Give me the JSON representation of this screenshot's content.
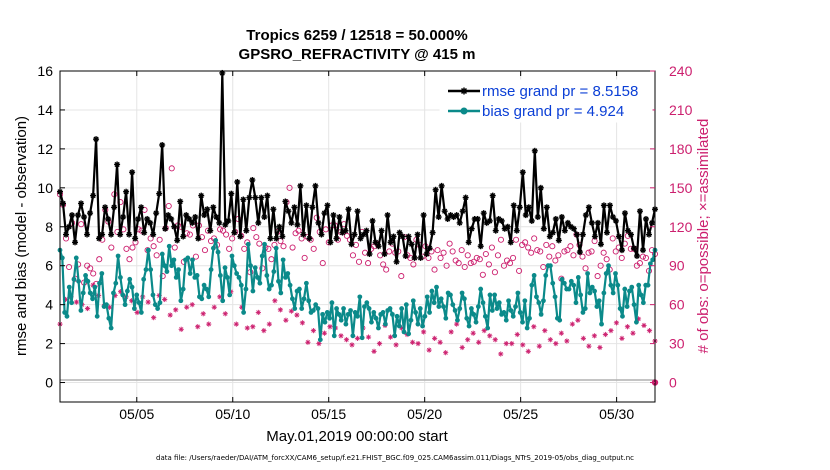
{
  "chart_data": {
    "type": "line",
    "title": "Tropics 6259 / 12518 = 50.000%",
    "subtitle": "GPSRO_REFRACTIVITY @ 415 m",
    "xlabel": "May.01,2019 00:00:00 start",
    "ylabel": "rmse and bias (model - observation)",
    "y2label": "# of obs: o=possible; ×=assimilated",
    "x_ticks": [
      {
        "pos": 5,
        "label": "05/05"
      },
      {
        "pos": 10,
        "label": "05/10"
      },
      {
        "pos": 15,
        "label": "05/15"
      },
      {
        "pos": 20,
        "label": "05/20"
      },
      {
        "pos": 25,
        "label": "05/25"
      },
      {
        "pos": 30,
        "label": "05/30"
      }
    ],
    "xlim": [
      1,
      32
    ],
    "ylim": [
      -1,
      16
    ],
    "y_ticks": [
      0,
      2,
      4,
      6,
      8,
      10,
      12,
      14,
      16
    ],
    "y2lim": [
      -15,
      240
    ],
    "y2_ticks": [
      0,
      30,
      60,
      90,
      120,
      150,
      180,
      210,
      240
    ],
    "grid": true,
    "legend": "top-right",
    "series": [
      {
        "name": "rmse grand pr = 8.5158",
        "color": "#000000",
        "marker": "asterisk",
        "values": [
          9.8,
          9.2,
          7.6,
          8.0,
          8.6,
          7.2,
          8.6,
          9.2,
          8.5,
          7.6,
          8.7,
          9.6,
          12.5,
          7.4,
          7.6,
          9.0,
          8.4,
          7.6,
          9.0,
          11.2,
          7.6,
          8.5,
          9.8,
          7.6,
          10.8,
          7.4,
          8.4,
          9.0,
          7.7,
          8.4,
          8.2,
          7.6,
          8.7,
          9.7,
          12.2,
          7.9,
          8.6,
          8.4,
          8.0,
          7.3,
          9.3,
          7.5,
          8.6,
          8.4,
          8.2,
          8.5,
          7.4,
          9.6,
          8.6,
          8.9,
          7.8,
          9.0,
          8.5,
          8.2,
          15.9,
          8.1,
          8.3,
          9.7,
          7.7,
          10.3,
          7.5,
          9.4,
          7.8,
          9.5,
          10.4,
          9.5,
          8.2,
          9.5,
          8.5,
          9.6,
          7.4,
          8.9,
          7.4,
          8.0,
          7.5,
          9.3,
          8.8,
          8.2,
          9.0,
          8.1,
          10.1,
          7.6,
          9.1,
          7.4,
          9.0,
          10.1,
          8.2,
          7.6,
          8.7,
          9.1,
          7.2,
          8.6,
          7.4,
          8.5,
          7.7,
          7.8,
          8.9,
          7.1,
          7.6,
          8.8,
          7.4,
          7.6,
          7.8,
          6.6,
          8.3,
          7.2,
          7.0,
          7.8,
          6.6,
          8.6,
          7.2,
          7.5,
          6.2,
          7.7,
          7.5,
          6.5,
          7.5,
          7.1,
          6.4,
          7.6,
          6.4,
          8.6,
          6.6,
          6.9,
          7.7,
          9.9,
          8.5,
          10.1,
          8.8,
          8.4,
          8.6,
          8.5,
          8.6,
          8.2,
          8.8,
          9.5,
          7.2,
          7.9,
          8.4,
          8.4,
          7.0,
          8.7,
          8.2,
          8.3,
          9.6,
          7.8,
          8.4,
          8.3,
          7.9,
          8.0,
          7.2,
          9.1,
          7.8,
          9.0,
          10.8,
          8.6,
          9.0,
          8.3,
          11.9,
          8.5,
          10.0,
          7.9,
          9.0,
          7.5,
          7.7,
          8.4,
          7.3,
          8.5,
          7.8,
          8.2,
          8.0,
          7.9,
          7.6,
          6.7,
          7.6,
          8.6,
          9.0,
          8.2,
          7.5,
          8.2,
          7.1,
          9.1,
          7.7,
          9.1,
          8.5,
          8.3,
          7.5,
          6.8,
          8.7,
          7.8,
          7.6,
          6.9,
          6.5,
          8.8,
          6.8,
          8.4,
          7.6,
          8.2,
          8.9
        ]
      },
      {
        "name": "bias grand pr = 4.924",
        "color": "#0b8a8a",
        "marker": "circle",
        "values": [
          6.8,
          6.4,
          3.6,
          3.4,
          4.9,
          4.1,
          5.3,
          6.4,
          5.2,
          3.7,
          4.6,
          5.5,
          5.2,
          4.6,
          4.3,
          4.9,
          3.4,
          5.1,
          5.6,
          3.9,
          4.0,
          3.3,
          2.8,
          4.6,
          5.1,
          6.5,
          5.4,
          4.5,
          4.0,
          4.7,
          5.3,
          4.9,
          3.8,
          4.5,
          4.1,
          3.6,
          5.3,
          5.8,
          6.8,
          5.8,
          4.5,
          4.0,
          3.8,
          4.1,
          6.6,
          6.0,
          5.7,
          7.0,
          6.0,
          6.3,
          5.4,
          5.8,
          4.2,
          4.8,
          6.3,
          6.4,
          5.6,
          6.3,
          5.4,
          5.5,
          4.4,
          4.3,
          5.0,
          4.8,
          4.4,
          5.8,
          6.9,
          7.3,
          6.7,
          5.5,
          4.2,
          5.9,
          5.4,
          4.5,
          6.5,
          6.0,
          5.6,
          5.4,
          5.0,
          3.6,
          4.8,
          7.1,
          6.0,
          4.7,
          5.9,
          5.4,
          5.1,
          6.5,
          7.1,
          5.5,
          4.8,
          5.0,
          5.7,
          6.9,
          5.2,
          4.6,
          6.3,
          5.4,
          5.6,
          5.0,
          4.3,
          3.8,
          4.7,
          4.8,
          3.8,
          4.3,
          5.1,
          4.2,
          3.6,
          3.7,
          4.0,
          3.8,
          2.2,
          3.5,
          3.1,
          3.6,
          3.3,
          4.1,
          2.4,
          3.8,
          3.5,
          3.2,
          3.8,
          3.0,
          3.5,
          3.7,
          2.4,
          3.6,
          3.4,
          4.4,
          2.3,
          3.9,
          4.1,
          3.8,
          3.1,
          3.6,
          3.3,
          2.8,
          3.5,
          3.6,
          3.0,
          3.7,
          3.8,
          3.5,
          2.4,
          3.4,
          2.9,
          3.8,
          2.6,
          4.0,
          2.5,
          3.2,
          4.2,
          3.6,
          3.0,
          3.8,
          2.9,
          3.4,
          4.4,
          3.6,
          4.7,
          4.1,
          4.9,
          3.9,
          4.3,
          3.9,
          3.3,
          4.6,
          4.5,
          4.0,
          3.7,
          3.2,
          3.8,
          4.6,
          4.3,
          3.3,
          2.9,
          3.8,
          3.5,
          3.1,
          3.9,
          4.8,
          4.1,
          3.4,
          2.8,
          4.5,
          3.7,
          4.5,
          3.8,
          4.1,
          3.5,
          3.6,
          3.2,
          4.2,
          3.7,
          3.4,
          3.9,
          4.6,
          3.6,
          3.1,
          4.2,
          2.8,
          3.3,
          5.0,
          5.5,
          4.4,
          4.1,
          3.5,
          4.2,
          5.5,
          6.0,
          6.0,
          5.1,
          4.4,
          3.3,
          3.2,
          5.3,
          5.1,
          4.8,
          4.8,
          5.2,
          5.0,
          4.1,
          5.4,
          4.5,
          3.6,
          3.8,
          5.6,
          4.6,
          4.9,
          4.7,
          3.9,
          4.2,
          3.0,
          4.6,
          5.6,
          6.0,
          5.0,
          4.6,
          5.6,
          5.0,
          3.8,
          3.4,
          4.8,
          3.9,
          4.7,
          4.9,
          4.0,
          3.1,
          5.0,
          4.5,
          4.1,
          5.0,
          5.0,
          6.1,
          6.3,
          6.8
        ]
      },
      {
        "name": "obs possible",
        "axis": "right",
        "color": "#cc1f6e",
        "marker": "open-circle",
        "values": [
          145,
          137,
          111,
          89,
          123,
          80,
          91,
          122,
          77,
          90,
          88,
          84,
          76,
          95,
          110,
          133,
          124,
          104,
          145,
          116,
          139,
          118,
          103,
          95,
          104,
          108,
          118,
          117,
          133,
          102,
          111,
          105,
          98,
          110,
          82,
          119,
          136,
          165,
          104,
          121,
          120,
          93,
          115,
          114,
          121,
          97,
          121,
          112,
          102,
          117,
          109,
          111,
          106,
          118,
          117,
          114,
          103,
          111,
          116,
          126,
          113,
          103,
          108,
          85,
          119,
          112,
          107,
          88,
          104,
          103,
          95,
          106,
          116,
          109,
          105,
          139,
          150,
          104,
          115,
          117,
          111,
          96,
          112,
          110,
          103,
          127,
          116,
          92,
          118,
          108,
          121,
          121,
          110,
          116,
          122,
          113,
          110,
          98,
          106,
          93,
          116,
          100,
          92,
          103,
          105,
          107,
          98,
          91,
          87,
          101,
          107,
          100,
          101,
          82,
          112,
          98,
          96,
          91,
          110,
          106,
          97,
          105,
          96,
          101,
          87,
          102,
          96,
          100,
          90,
          107,
          101,
          94,
          92,
          102,
          89,
          98,
          92,
          93,
          96,
          95,
          83,
          99,
          91,
          104,
          85,
          98,
          110,
          90,
          94,
          92,
          96,
          110,
          86,
          106,
          108,
          104,
          100,
          111,
          102,
          101,
          89,
          106,
          97,
          105,
          94,
          98,
          80,
          101,
          102,
          105,
          98,
          114,
          106,
          97,
          88,
          100,
          101,
          109,
          82,
          90,
          100,
          95,
          87,
          111,
          101,
          104,
          96,
          107,
          113,
          103,
          103,
          90,
          92,
          97,
          96,
          86,
          102,
          99
        ]
      },
      {
        "name": "obs assimilated",
        "axis": "right",
        "color": "#cc1f6e",
        "marker": "asterisk",
        "values": [
          45,
          64,
          66,
          62,
          60,
          57,
          75,
          67,
          59,
          58,
          67,
          70,
          66,
          63,
          54,
          66,
          62,
          50,
          67,
          64,
          52,
          56,
          41,
          58,
          60,
          43,
          53,
          45,
          58,
          66,
          53,
          70,
          45,
          58,
          42,
          43,
          54,
          40,
          45,
          63,
          56,
          48,
          55,
          52,
          46,
          31,
          40,
          30,
          38,
          43,
          42,
          36,
          33,
          29,
          34,
          42,
          35,
          24,
          30,
          44,
          35,
          29,
          42,
          37,
          31,
          30,
          39,
          25,
          34,
          31,
          23,
          39,
          45,
          27,
          33,
          38,
          31,
          40,
          36,
          33,
          22,
          30,
          30,
          37,
          29,
          24,
          43,
          28,
          40,
          33,
          30,
          38,
          32,
          45,
          48,
          34,
          28,
          36,
          27,
          37,
          40,
          46,
          34,
          43,
          38,
          49,
          44,
          40,
          32
        ]
      }
    ]
  }
}
